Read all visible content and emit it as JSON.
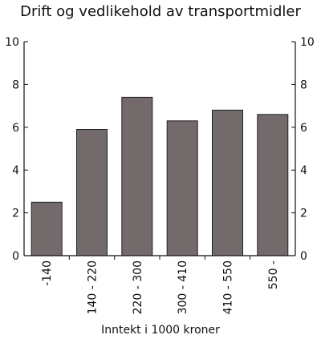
{
  "chart_data": {
    "type": "bar",
    "title": "Drift og vedlikehold av transportmidler",
    "xlabel": "Inntekt i 1000 kroner",
    "ylabel": "",
    "categories": [
      "-140",
      "140 - 220",
      "220 - 300",
      "300 - 410",
      "410 - 550",
      "550 -"
    ],
    "values": [
      2.5,
      5.9,
      7.4,
      6.3,
      6.8,
      6.6
    ],
    "ylim": [
      0,
      10
    ],
    "yticks": [
      0,
      2,
      4,
      6,
      8,
      10
    ],
    "right_axis_ticks": true,
    "grid": false,
    "legend": "none",
    "colors": {
      "bar": "#736a6c",
      "bar_stroke": "#222222",
      "axis": "#111111"
    }
  }
}
